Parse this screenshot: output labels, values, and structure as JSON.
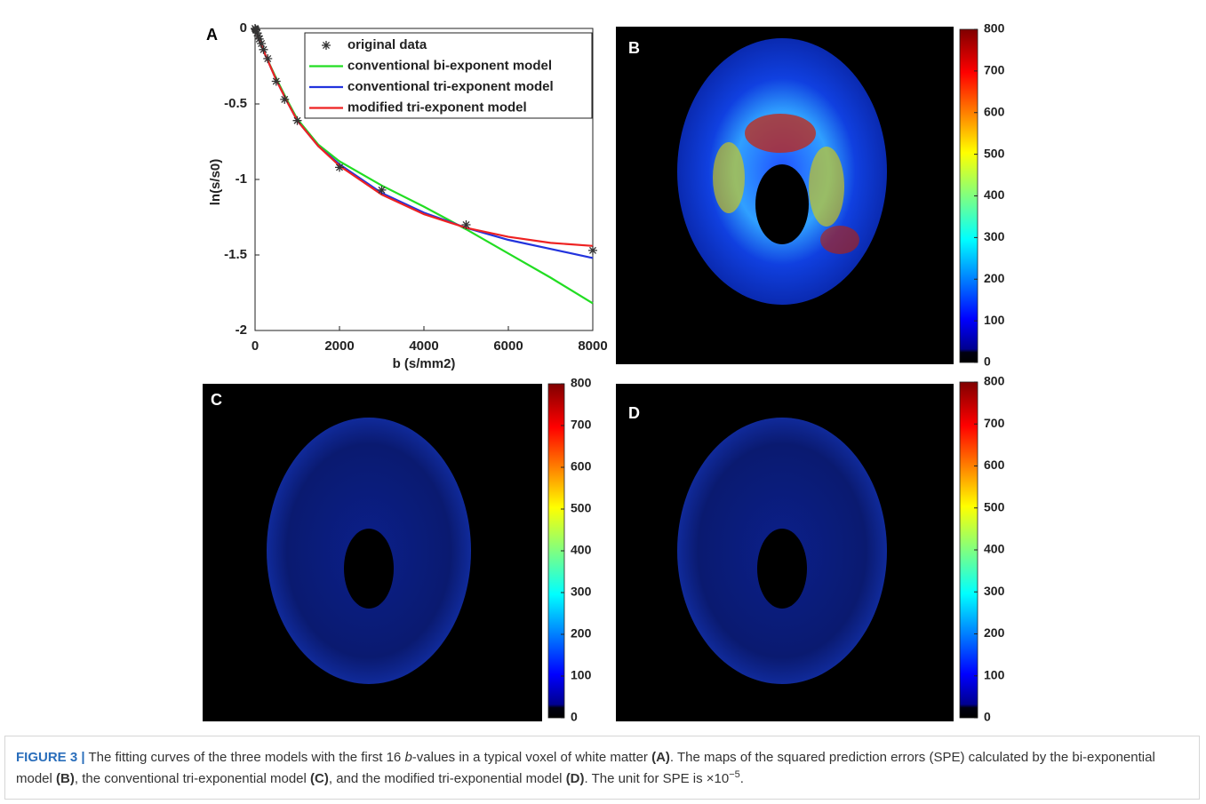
{
  "chart_data": {
    "type": "line",
    "label": "A",
    "x_label": "b (s/mm2)",
    "y_label": "ln(s/s0)",
    "xlim": [
      0,
      8000
    ],
    "ylim": [
      -2,
      0
    ],
    "xticks": [
      0,
      2000,
      4000,
      6000,
      8000
    ],
    "yticks": [
      -2,
      -1.5,
      -1,
      -0.5,
      0
    ],
    "legend": "upper right",
    "series": [
      {
        "name": "original data",
        "color": "#333333",
        "marker": "asterisk",
        "x": [
          0,
          10,
          20,
          50,
          80,
          100,
          150,
          200,
          300,
          500,
          700,
          1000,
          2000,
          3000,
          5000,
          8000
        ],
        "values": [
          0,
          -0.005,
          -0.01,
          -0.03,
          -0.05,
          -0.07,
          -0.1,
          -0.14,
          -0.2,
          -0.35,
          -0.47,
          -0.61,
          -0.92,
          -1.07,
          -1.3,
          -1.47
        ]
      },
      {
        "name": "conventional bi-exponent model",
        "color": "#22dd22",
        "x": [
          0,
          100,
          250,
          500,
          750,
          1000,
          1500,
          2000,
          3000,
          4000,
          5000,
          6000,
          7000,
          8000
        ],
        "values": [
          0,
          -0.08,
          -0.18,
          -0.33,
          -0.47,
          -0.6,
          -0.77,
          -0.88,
          -1.04,
          -1.18,
          -1.33,
          -1.49,
          -1.65,
          -1.82
        ]
      },
      {
        "name": "conventional tri-exponent model",
        "color": "#2233dd",
        "x": [
          0,
          100,
          250,
          500,
          750,
          1000,
          1500,
          2000,
          3000,
          4000,
          5000,
          6000,
          7000,
          8000
        ],
        "values": [
          0,
          -0.08,
          -0.18,
          -0.34,
          -0.48,
          -0.61,
          -0.78,
          -0.9,
          -1.09,
          -1.22,
          -1.32,
          -1.4,
          -1.46,
          -1.52
        ]
      },
      {
        "name": "modified tri-exponent model",
        "color": "#ee2222",
        "x": [
          0,
          100,
          250,
          500,
          750,
          1000,
          1500,
          2000,
          3000,
          4000,
          5000,
          6000,
          7000,
          8000
        ],
        "values": [
          0,
          -0.08,
          -0.18,
          -0.34,
          -0.48,
          -0.61,
          -0.78,
          -0.91,
          -1.1,
          -1.23,
          -1.32,
          -1.38,
          -1.42,
          -1.44
        ]
      }
    ]
  },
  "panels": [
    {
      "label": "B",
      "colorbar_lim": [
        0,
        800
      ],
      "colorbar_ticks": [
        0,
        100,
        200,
        300,
        400,
        500,
        600,
        700,
        800
      ]
    },
    {
      "label": "C",
      "colorbar_lim": [
        0,
        800
      ],
      "colorbar_ticks": [
        0,
        100,
        200,
        300,
        400,
        500,
        600,
        700,
        800
      ]
    },
    {
      "label": "D",
      "colorbar_lim": [
        0,
        800
      ],
      "colorbar_ticks": [
        0,
        100,
        200,
        300,
        400,
        500,
        600,
        700,
        800
      ]
    }
  ],
  "caption": {
    "segments": [
      {
        "text": "FIGURE 3 |",
        "style": "head"
      },
      {
        "text": " The fitting curves of the three models with the first 16 "
      },
      {
        "text": "b",
        "style": "italic"
      },
      {
        "text": "-values in a typical voxel of white matter "
      },
      {
        "text": "(A)",
        "style": "bold"
      },
      {
        "text": ". The maps of the squared prediction errors (SPE) calculated by the bi-exponential model "
      },
      {
        "text": "(B)",
        "style": "bold"
      },
      {
        "text": ", the conventional tri-exponential model "
      },
      {
        "text": "(C)",
        "style": "bold"
      },
      {
        "text": ", and the modified tri-exponential model "
      },
      {
        "text": "(D)",
        "style": "bold"
      },
      {
        "text": ". The unit for SPE is ×10"
      },
      {
        "text": "−5",
        "style": "sup"
      },
      {
        "text": "."
      }
    ]
  }
}
